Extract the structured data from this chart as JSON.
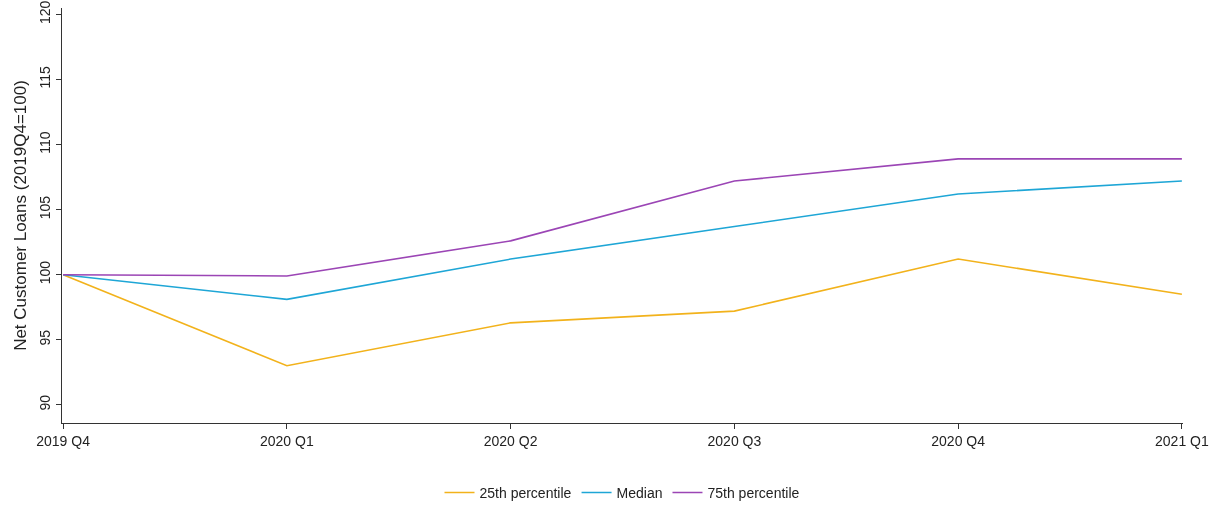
{
  "chart_data": {
    "type": "line",
    "ylabel": "Net Customer Loans (2019Q4=100)",
    "categories": [
      "2019 Q4",
      "2020 Q1",
      "2020 Q2",
      "2020 Q3",
      "2020 Q4",
      "2021 Q1"
    ],
    "series": [
      {
        "name": "25th percentile",
        "color": "#f2b21b",
        "values": [
          100,
          93.0,
          96.3,
          97.2,
          101.2,
          98.5
        ]
      },
      {
        "name": "Median",
        "color": "#1ea6d6",
        "values": [
          100,
          98.1,
          101.2,
          103.7,
          106.2,
          107.2
        ]
      },
      {
        "name": "75th percentile",
        "color": "#9b45b5",
        "values": [
          100,
          99.9,
          102.6,
          107.2,
          108.9,
          108.9
        ]
      }
    ],
    "ylim": [
      88.6,
      120.5
    ],
    "yticks": [
      90,
      95,
      100,
      105,
      110,
      115,
      120
    ],
    "grid": false,
    "legend": "bottom",
    "marker": "none",
    "line_style": "solid"
  }
}
